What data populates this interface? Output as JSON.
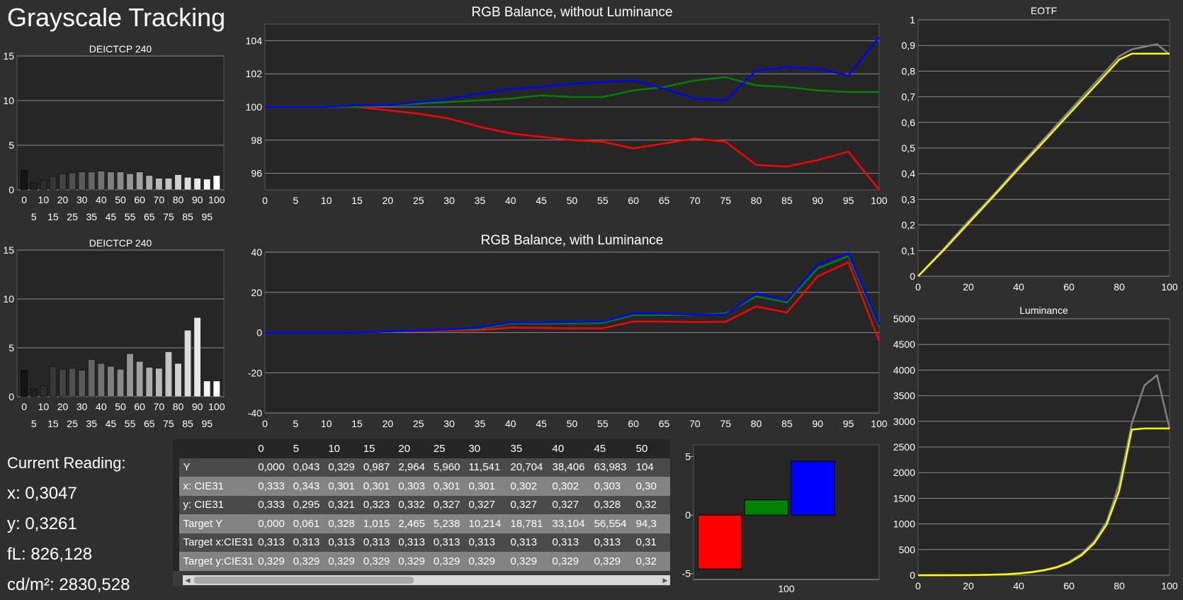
{
  "app": {
    "title": "Grayscale Tracking"
  },
  "colors": {
    "red": "#ff0000",
    "green": "#008000",
    "blue": "#0000ff",
    "target": "#ffff00",
    "measured": "#808080",
    "grid": "#888888",
    "plot_bg": "#262626"
  },
  "current_reading": {
    "heading": "Current Reading:",
    "x": "x: 0,3047",
    "y": "y: 0,3261",
    "fl": "fL: 826,128",
    "cdm2": "cd/m²: 2830,528"
  },
  "table": {
    "columns": [
      "0",
      "5",
      "10",
      "15",
      "20",
      "25",
      "30",
      "35",
      "40",
      "45",
      "50"
    ],
    "rows": [
      {
        "label": "Y",
        "cells": [
          "0,000",
          "0,043",
          "0,329",
          "0,987",
          "2,964",
          "5,960",
          "11,541",
          "20,704",
          "38,406",
          "63,983",
          "104"
        ]
      },
      {
        "label": "x: CIE31",
        "cells": [
          "0,333",
          "0,343",
          "0,301",
          "0,301",
          "0,303",
          "0,301",
          "0,301",
          "0,302",
          "0,302",
          "0,303",
          "0,30"
        ]
      },
      {
        "label": "y: CIE31",
        "cells": [
          "0,333",
          "0,295",
          "0,321",
          "0,323",
          "0,332",
          "0,327",
          "0,327",
          "0,327",
          "0,327",
          "0,328",
          "0,32"
        ]
      },
      {
        "label": "Target Y",
        "cells": [
          "0,000",
          "0,061",
          "0,328",
          "1,015",
          "2,465",
          "5,238",
          "10,214",
          "18,781",
          "33,104",
          "56,554",
          "94,3"
        ]
      },
      {
        "label": "Target x:CIE31",
        "cells": [
          "0,313",
          "0,313",
          "0,313",
          "0,313",
          "0,313",
          "0,313",
          "0,313",
          "0,313",
          "0,313",
          "0,313",
          "0,31"
        ]
      },
      {
        "label": "Target y:CIE31",
        "cells": [
          "0,329",
          "0,329",
          "0,329",
          "0,329",
          "0,329",
          "0,329",
          "0,329",
          "0,329",
          "0,329",
          "0,329",
          "0,32"
        ]
      }
    ]
  },
  "scrollbar": {
    "left_arrow": "◀",
    "right_arrow": "▶"
  },
  "chart_data": [
    {
      "id": "deictcp-top",
      "type": "bar",
      "title": "DEICTCP 240",
      "categories": [
        0,
        5,
        10,
        15,
        20,
        25,
        30,
        35,
        40,
        45,
        50,
        55,
        60,
        65,
        70,
        75,
        80,
        85,
        90,
        95,
        100
      ],
      "values": [
        2.2,
        0.8,
        1.1,
        1.5,
        1.8,
        1.9,
        2.0,
        2.0,
        2.1,
        2.0,
        2.0,
        1.8,
        2.0,
        1.6,
        1.3,
        1.3,
        1.7,
        1.4,
        1.3,
        1.2,
        1.6
      ],
      "ylim": [
        0,
        15
      ],
      "yticks": [
        0,
        5,
        10,
        15
      ],
      "xticks_top": [
        "0",
        "10",
        "20",
        "30",
        "40",
        "50",
        "60",
        "70",
        "80",
        "90",
        "100"
      ],
      "xticks_bottom": [
        "5",
        "15",
        "25",
        "35",
        "45",
        "55",
        "65",
        "75",
        "85",
        "95"
      ],
      "grid": true
    },
    {
      "id": "deictcp-bottom",
      "type": "bar",
      "title": "DEICTCP 240",
      "categories": [
        0,
        5,
        10,
        15,
        20,
        25,
        30,
        35,
        40,
        45,
        50,
        55,
        60,
        65,
        70,
        75,
        80,
        85,
        90,
        95,
        100
      ],
      "values": [
        2.7,
        0.8,
        1.1,
        3.1,
        2.8,
        2.9,
        2.7,
        3.8,
        3.4,
        3.1,
        2.8,
        4.4,
        3.6,
        3.0,
        2.9,
        4.6,
        3.4,
        6.8,
        8.1,
        1.6,
        1.6
      ],
      "ylim": [
        0,
        15
      ],
      "yticks": [
        0,
        5,
        10,
        15
      ],
      "xticks_top": [
        "0",
        "10",
        "20",
        "30",
        "40",
        "50",
        "60",
        "70",
        "80",
        "90",
        "100"
      ],
      "xticks_bottom": [
        "5",
        "15",
        "25",
        "35",
        "45",
        "55",
        "65",
        "75",
        "85",
        "95"
      ],
      "grid": true
    },
    {
      "id": "rgb-without-lum",
      "type": "line",
      "title": "RGB Balance, without Luminance",
      "x": [
        0,
        5,
        10,
        15,
        20,
        25,
        30,
        35,
        40,
        45,
        50,
        55,
        60,
        65,
        70,
        75,
        80,
        85,
        90,
        95,
        100
      ],
      "series": [
        {
          "color": "red",
          "values": [
            100,
            100,
            100,
            100,
            99.8,
            99.6,
            99.3,
            98.8,
            98.4,
            98.2,
            98.0,
            97.9,
            97.5,
            97.8,
            98.1,
            97.9,
            96.5,
            96.4,
            96.8,
            97.3,
            95.0
          ]
        },
        {
          "color": "green",
          "values": [
            100,
            100,
            100,
            100,
            100.1,
            100.2,
            100.3,
            100.4,
            100.5,
            100.7,
            100.6,
            100.6,
            101.0,
            101.2,
            101.6,
            101.8,
            101.3,
            101.2,
            101.0,
            100.9,
            100.9
          ]
        },
        {
          "color": "blue",
          "values": [
            100,
            100,
            100,
            100.1,
            100.1,
            100.3,
            100.5,
            100.8,
            101.1,
            101.2,
            101.4,
            101.5,
            101.6,
            101.1,
            100.5,
            100.4,
            102.2,
            102.4,
            102.3,
            101.9,
            104.2
          ]
        }
      ],
      "ylim": [
        95,
        105
      ],
      "yticks": [
        96,
        98,
        100,
        102,
        104
      ],
      "xticks": [
        0,
        5,
        10,
        15,
        20,
        25,
        30,
        35,
        40,
        45,
        50,
        55,
        60,
        65,
        70,
        75,
        80,
        85,
        90,
        95,
        100
      ],
      "grid": true
    },
    {
      "id": "rgb-with-lum",
      "type": "line",
      "title": "RGB Balance, with Luminance",
      "x": [
        0,
        5,
        10,
        15,
        20,
        25,
        30,
        35,
        40,
        45,
        50,
        55,
        60,
        65,
        70,
        75,
        80,
        85,
        90,
        95,
        100
      ],
      "series": [
        {
          "color": "red",
          "values": [
            0,
            0,
            0,
            0,
            0.5,
            0.7,
            1,
            1.2,
            2.5,
            2.3,
            2.1,
            2.2,
            5.5,
            5.5,
            5.2,
            5.4,
            13,
            10,
            28,
            35,
            -4
          ]
        },
        {
          "color": "green",
          "values": [
            0,
            0,
            0,
            0,
            0.5,
            0.9,
            1.4,
            1.9,
            4.5,
            4.5,
            4.5,
            4.8,
            8.7,
            8.7,
            8.7,
            9.6,
            18,
            15,
            32,
            38,
            3
          ]
        },
        {
          "color": "blue",
          "values": [
            0,
            0,
            0,
            0,
            0.6,
            1,
            1.6,
            2.5,
            5,
            5,
            5.3,
            5.5,
            9.5,
            9.4,
            8.8,
            9,
            19.5,
            16,
            34,
            39.5,
            4
          ]
        }
      ],
      "ylim": [
        -40,
        40
      ],
      "yticks": [
        -40,
        -20,
        0,
        20,
        40
      ],
      "xticks": [
        0,
        5,
        10,
        15,
        20,
        25,
        30,
        35,
        40,
        45,
        50,
        55,
        60,
        65,
        70,
        75,
        80,
        85,
        90,
        95,
        100
      ],
      "grid": true
    },
    {
      "id": "eotf",
      "type": "line",
      "title": "EOTF",
      "x": [
        0,
        10,
        20,
        30,
        40,
        50,
        60,
        70,
        80,
        85,
        90,
        95,
        100
      ],
      "series": [
        {
          "color": "measured",
          "values": [
            0,
            0.105,
            0.215,
            0.318,
            0.428,
            0.535,
            0.643,
            0.75,
            0.858,
            0.885,
            0.895,
            0.905,
            0.865
          ]
        },
        {
          "color": "target",
          "values": [
            0,
            0.1,
            0.206,
            0.312,
            0.42,
            0.525,
            0.632,
            0.738,
            0.845,
            0.868,
            0.868,
            0.868,
            0.868
          ]
        }
      ],
      "ylim": [
        0,
        1
      ],
      "yticks": [
        "0",
        "0,1",
        "0,2",
        "0,3",
        "0,4",
        "0,5",
        "0,6",
        "0,7",
        "0,8",
        "0,9",
        "1"
      ],
      "xticks": [
        0,
        20,
        40,
        60,
        80,
        100
      ],
      "grid": true
    },
    {
      "id": "luminance",
      "type": "line",
      "title": "Luminance",
      "x": [
        0,
        10,
        20,
        30,
        35,
        40,
        45,
        50,
        55,
        60,
        65,
        70,
        75,
        80,
        85,
        90,
        95,
        100
      ],
      "series": [
        {
          "color": "measured",
          "values": [
            0,
            0,
            2,
            11,
            20,
            38,
            64,
            104,
            160,
            260,
            420,
            660,
            1050,
            1780,
            2960,
            3700,
            3900,
            2860
          ]
        },
        {
          "color": "target",
          "values": [
            0,
            0,
            2,
            10,
            19,
            33,
            57,
            94,
            150,
            240,
            390,
            620,
            990,
            1650,
            2840,
            2860,
            2860,
            2860
          ]
        }
      ],
      "ylim": [
        0,
        5000
      ],
      "yticks": [
        0,
        500,
        1000,
        1500,
        2000,
        2500,
        3000,
        3500,
        4000,
        4500,
        5000
      ],
      "xticks": [
        0,
        20,
        40,
        60,
        80,
        100
      ],
      "grid": true
    },
    {
      "id": "rgb-bars",
      "type": "bar",
      "title": "",
      "categories": [
        "100"
      ],
      "series": [
        {
          "color": "red",
          "values": [
            -4.6
          ]
        },
        {
          "color": "green",
          "values": [
            1.3
          ]
        },
        {
          "color": "blue",
          "values": [
            4.6
          ]
        }
      ],
      "ylim": [
        -5.5,
        6
      ],
      "yticks": [
        -5,
        0,
        5
      ],
      "grid": false
    }
  ]
}
